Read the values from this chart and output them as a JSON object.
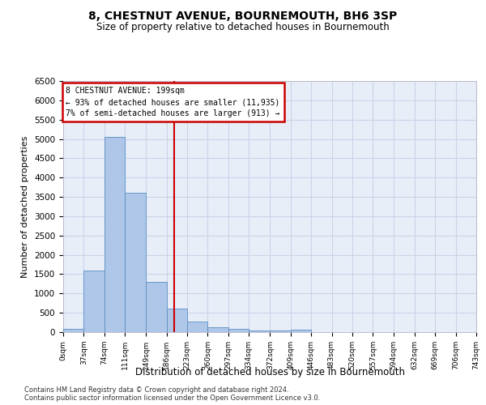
{
  "title": "8, CHESTNUT AVENUE, BOURNEMOUTH, BH6 3SP",
  "subtitle": "Size of property relative to detached houses in Bournemouth",
  "xlabel": "Distribution of detached houses by size in Bournemouth",
  "ylabel": "Number of detached properties",
  "bin_edges": [
    0,
    37,
    74,
    111,
    149,
    186,
    223,
    260,
    297,
    334,
    372,
    409,
    446,
    483,
    520,
    557,
    594,
    632,
    669,
    706,
    743
  ],
  "bar_heights": [
    75,
    1600,
    5050,
    3600,
    1300,
    600,
    275,
    125,
    80,
    50,
    50,
    70,
    0,
    0,
    0,
    0,
    0,
    0,
    0,
    0
  ],
  "bar_color": "#aec6e8",
  "bar_edge_color": "#5a8fc2",
  "property_size": 199,
  "annotation_title": "8 CHESTNUT AVENUE: 199sqm",
  "annotation_line1": "← 93% of detached houses are smaller (11,935)",
  "annotation_line2": "7% of semi-detached houses are larger (913) →",
  "annotation_box_color": "#cc0000",
  "vline_color": "#cc0000",
  "ylim": [
    0,
    6500
  ],
  "yticks": [
    0,
    500,
    1000,
    1500,
    2000,
    2500,
    3000,
    3500,
    4000,
    4500,
    5000,
    5500,
    6000,
    6500
  ],
  "background_color": "#e8eef8",
  "grid_color": "#c8d4e8",
  "footer_line1": "Contains HM Land Registry data © Crown copyright and database right 2024.",
  "footer_line2": "Contains public sector information licensed under the Open Government Licence v3.0."
}
